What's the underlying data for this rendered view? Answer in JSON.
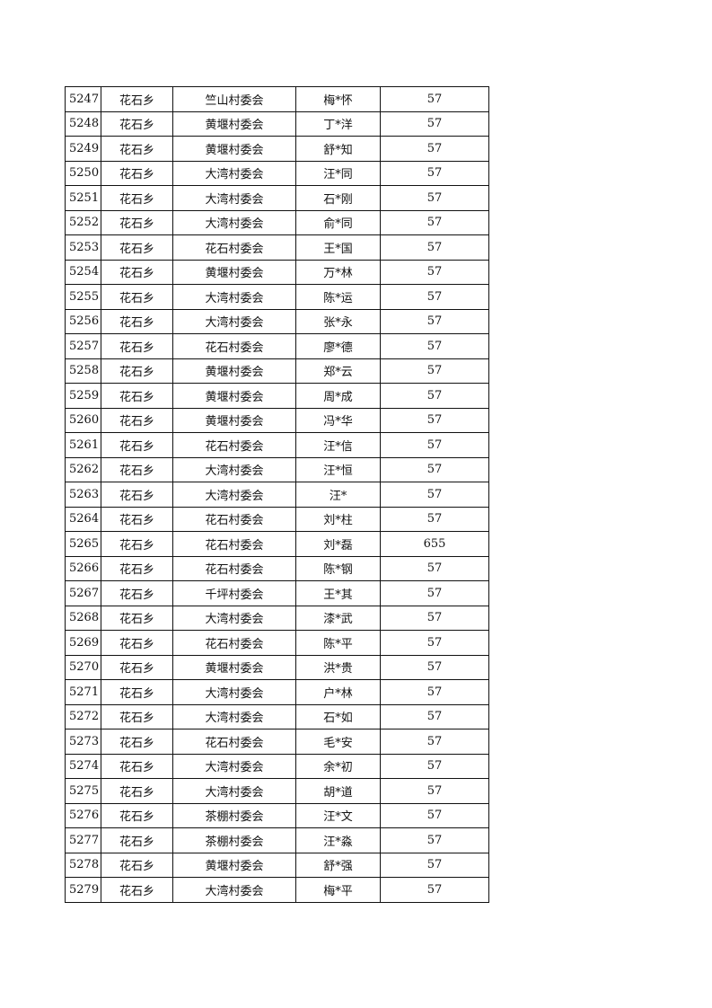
{
  "rows": [
    [
      "5247",
      "花石乡",
      "竺山村委会",
      "梅*怀",
      "57"
    ],
    [
      "5248",
      "花石乡",
      "黄堰村委会",
      "丁*洋",
      "57"
    ],
    [
      "5249",
      "花石乡",
      "黄堰村委会",
      "舒*知",
      "57"
    ],
    [
      "5250",
      "花石乡",
      "大湾村委会",
      "汪*同",
      "57"
    ],
    [
      "5251",
      "花石乡",
      "大湾村委会",
      "石*刚",
      "57"
    ],
    [
      "5252",
      "花石乡",
      "大湾村委会",
      "俞*同",
      "57"
    ],
    [
      "5253",
      "花石乡",
      "花石村委会",
      "王*国",
      "57"
    ],
    [
      "5254",
      "花石乡",
      "黄堰村委会",
      "万*林",
      "57"
    ],
    [
      "5255",
      "花石乡",
      "大湾村委会",
      "陈*运",
      "57"
    ],
    [
      "5256",
      "花石乡",
      "大湾村委会",
      "张*永",
      "57"
    ],
    [
      "5257",
      "花石乡",
      "花石村委会",
      "廖*德",
      "57"
    ],
    [
      "5258",
      "花石乡",
      "黄堰村委会",
      "郑*云",
      "57"
    ],
    [
      "5259",
      "花石乡",
      "黄堰村委会",
      "周*成",
      "57"
    ],
    [
      "5260",
      "花石乡",
      "黄堰村委会",
      "冯*华",
      "57"
    ],
    [
      "5261",
      "花石乡",
      "花石村委会",
      "汪*信",
      "57"
    ],
    [
      "5262",
      "花石乡",
      "大湾村委会",
      "汪*恒",
      "57"
    ],
    [
      "5263",
      "花石乡",
      "大湾村委会",
      "汪*",
      "57"
    ],
    [
      "5264",
      "花石乡",
      "花石村委会",
      "刘*柱",
      "57"
    ],
    [
      "5265",
      "花石乡",
      "花石村委会",
      "刘*磊",
      "655"
    ],
    [
      "5266",
      "花石乡",
      "花石村委会",
      "陈*钢",
      "57"
    ],
    [
      "5267",
      "花石乡",
      "千坪村委会",
      "王*其",
      "57"
    ],
    [
      "5268",
      "花石乡",
      "大湾村委会",
      "漆*武",
      "57"
    ],
    [
      "5269",
      "花石乡",
      "花石村委会",
      "陈*平",
      "57"
    ],
    [
      "5270",
      "花石乡",
      "黄堰村委会",
      "洪*贵",
      "57"
    ],
    [
      "5271",
      "花石乡",
      "大湾村委会",
      "户*林",
      "57"
    ],
    [
      "5272",
      "花石乡",
      "大湾村委会",
      "石*如",
      "57"
    ],
    [
      "5273",
      "花石乡",
      "花石村委会",
      "毛*安",
      "57"
    ],
    [
      "5274",
      "花石乡",
      "大湾村委会",
      "余*初",
      "57"
    ],
    [
      "5275",
      "花石乡",
      "大湾村委会",
      "胡*道",
      "57"
    ],
    [
      "5276",
      "花石乡",
      "茶棚村委会",
      "汪*文",
      "57"
    ],
    [
      "5277",
      "花石乡",
      "茶棚村委会",
      "汪*淼",
      "57"
    ],
    [
      "5278",
      "花石乡",
      "黄堰村委会",
      "舒*强",
      "57"
    ],
    [
      "5279",
      "花石乡",
      "大湾村委会",
      "梅*平",
      "57"
    ]
  ]
}
